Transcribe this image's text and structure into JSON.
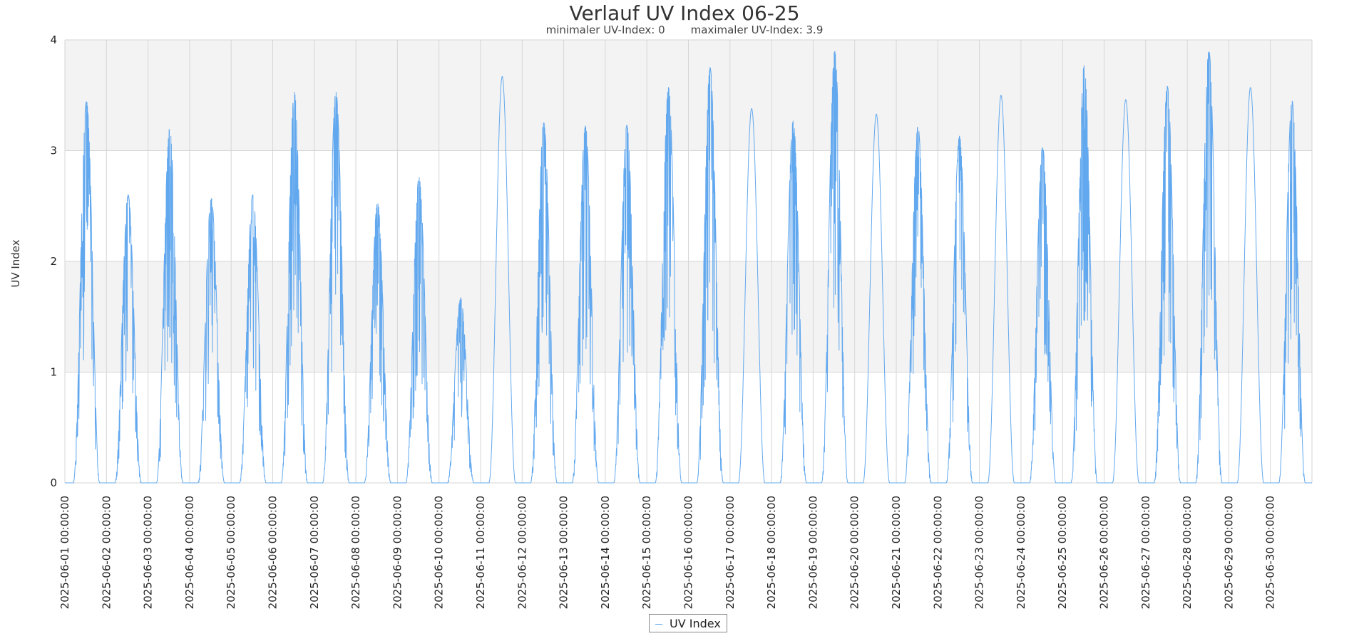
{
  "chart_data": {
    "type": "line",
    "title": "Verlauf UV Index 06-25",
    "subtitle_min": "minimaler UV-Index: 0",
    "subtitle_max": "maximaler UV-Index: 3.9",
    "ylabel": "UV Index",
    "xlabel": "",
    "ylim": [
      0,
      4
    ],
    "yticks": [
      "0",
      "1",
      "2",
      "3",
      "4"
    ],
    "grid": true,
    "legend_position": "bottom-center",
    "series": [
      {
        "name": "UV Index",
        "color": "#62a8ee",
        "daily_peaks": [
          3.45,
          2.6,
          3.2,
          2.57,
          2.6,
          3.53,
          3.53,
          2.53,
          2.76,
          1.67,
          3.67,
          3.25,
          3.22,
          3.23,
          3.57,
          3.75,
          3.38,
          3.27,
          3.9,
          3.33,
          3.22,
          3.13,
          3.5,
          3.03,
          3.77,
          3.46,
          3.58,
          3.9,
          3.57,
          3.45
        ]
      }
    ],
    "x_tick_labels": [
      "2025-06-01 00:00:00",
      "2025-06-02 00:00:00",
      "2025-06-03 00:00:00",
      "2025-06-04 00:00:00",
      "2025-06-05 00:00:00",
      "2025-06-06 00:00:00",
      "2025-06-07 00:00:00",
      "2025-06-08 00:00:00",
      "2025-06-09 00:00:00",
      "2025-06-10 00:00:00",
      "2025-06-11 00:00:00",
      "2025-06-12 00:00:00",
      "2025-06-13 00:00:00",
      "2025-06-14 00:00:00",
      "2025-06-15 00:00:00",
      "2025-06-16 00:00:00",
      "2025-06-17 00:00:00",
      "2025-06-18 00:00:00",
      "2025-06-19 00:00:00",
      "2025-06-20 00:00:00",
      "2025-06-21 00:00:00",
      "2025-06-22 00:00:00",
      "2025-06-23 00:00:00",
      "2025-06-24 00:00:00",
      "2025-06-25 00:00:00",
      "2025-06-26 00:00:00",
      "2025-06-27 00:00:00",
      "2025-06-28 00:00:00",
      "2025-06-29 00:00:00",
      "2025-06-30 00:00:00"
    ],
    "band_colors": [
      "#f3f3f3",
      "#ffffff"
    ],
    "grid_color": "#d6d6d6"
  }
}
